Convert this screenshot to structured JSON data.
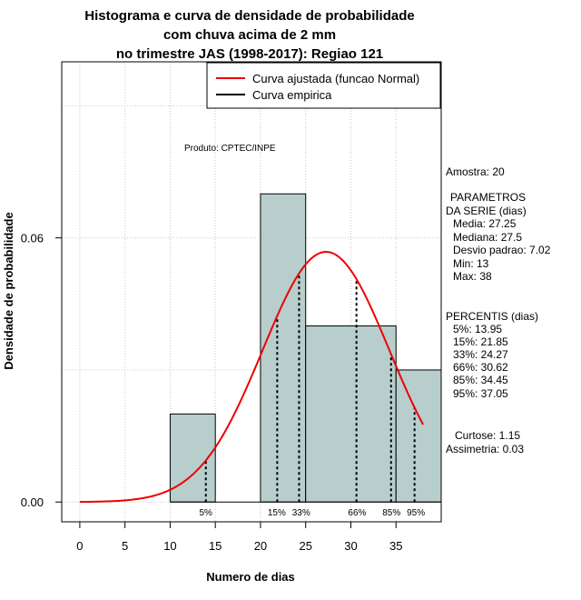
{
  "chart_data": {
    "type": "bar",
    "title": [
      "Histograma e curva de densidade de probabilidade",
      "com chuva acima de 2 mm",
      "no trimestre JAS (1998-2017): Regiao 121"
    ],
    "xlabel": "Numero de dias",
    "ylabel": "Densidade de probabilidade",
    "xlim": [
      -2,
      40
    ],
    "ylim": [
      -0.0045,
      0.1
    ],
    "xticks": [
      0,
      5,
      10,
      15,
      20,
      25,
      30,
      35
    ],
    "xtick_labels": [
      "0",
      "5",
      "10",
      "15",
      "20",
      "25",
      "30",
      "35"
    ],
    "yticks": [
      0.0,
      0.06
    ],
    "ytick_labels": [
      "0.00",
      "0.06"
    ],
    "grid": true,
    "bins": [
      {
        "x0": 10,
        "x1": 15,
        "density": 0.02
      },
      {
        "x0": 15,
        "x1": 20,
        "density": 0.0
      },
      {
        "x0": 20,
        "x1": 25,
        "density": 0.07
      },
      {
        "x0": 25,
        "x1": 35,
        "density": 0.04
      },
      {
        "x0": 35,
        "x1": 40,
        "density": 0.03
      }
    ],
    "bar_color": "#b7cecd",
    "normal_curve": {
      "name": "Curva ajustada (funcao Normal)",
      "mean": 27.25,
      "sd": 7.02,
      "x_from": 0,
      "x_to": 38,
      "color": "#ee0000"
    },
    "empirical_curve": {
      "name": "Curva empirica",
      "color": "#000000"
    },
    "percentiles": [
      {
        "label": "5%",
        "value": 13.95
      },
      {
        "label": "15%",
        "value": 21.85
      },
      {
        "label": "33%",
        "value": 24.27
      },
      {
        "label": "66%",
        "value": 30.62
      },
      {
        "label": "85%",
        "value": 34.45
      },
      {
        "label": "95%",
        "value": 37.05
      }
    ],
    "legend": {
      "position": "top-right",
      "entries": [
        "Curva ajustada (funcao Normal)",
        "Curva empirica"
      ]
    },
    "annotation": "Produto: CPTEC/INPE",
    "side_panel": [
      "Amostra: 20",
      "PARAMETROS",
      "DA SERIE (dias)",
      "Media: 27.25",
      "Mediana: 27.5",
      "Desvio padrao: 7.02",
      "Min: 13",
      "Max: 38",
      "PERCENTIS (dias)",
      "5%: 13.95",
      "15%: 21.85",
      "33%: 24.27",
      "66%: 30.62",
      "85%: 34.45",
      "95%: 37.05",
      "Curtose: 1.15",
      "Assimetria: 0.03"
    ]
  }
}
